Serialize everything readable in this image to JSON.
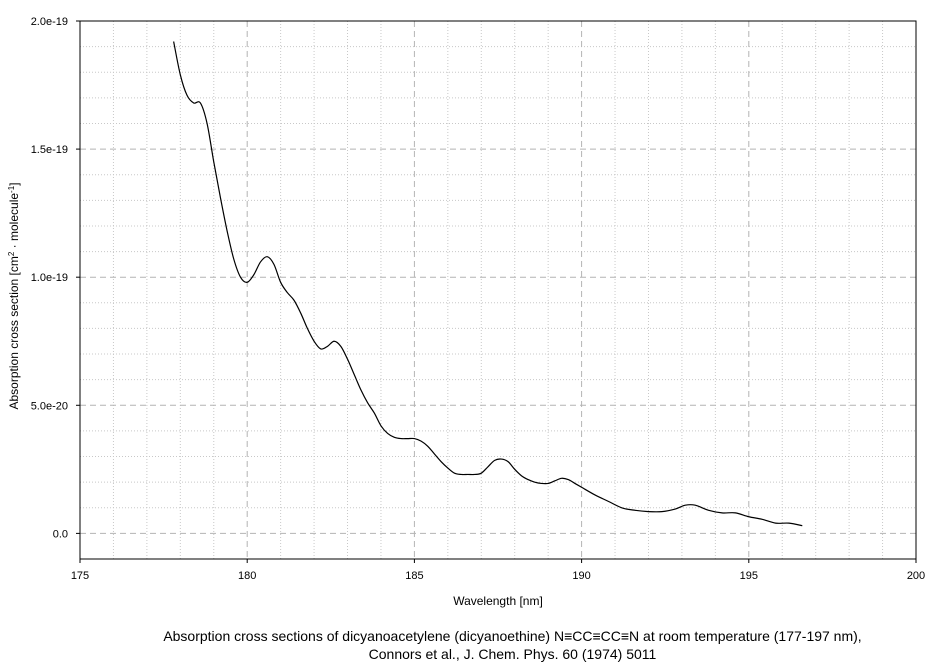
{
  "chart_data": {
    "type": "line",
    "xlabel": "Wavelength [nm]",
    "ylabel_parts": {
      "base": "Absorption cross section [cm",
      "sup1": "2",
      "mid": " · molecule",
      "sup2": "-1",
      "end": "]"
    },
    "xlim": [
      175,
      200
    ],
    "ylim": [
      -1e-20,
      2e-19
    ],
    "x_ticks": [
      175,
      180,
      185,
      190,
      195,
      200
    ],
    "x_tick_labels": [
      "175",
      "180",
      "185",
      "190",
      "195",
      "200"
    ],
    "y_ticks": [
      0,
      5e-20,
      1e-19,
      1.5e-19,
      2e-19
    ],
    "y_tick_labels": [
      "0.0",
      "5.0e-20",
      "1.0e-19",
      "1.5e-19",
      "2.0e-19"
    ],
    "grid": true,
    "series": [
      {
        "color": "#000000",
        "x": [
          177.8,
          178.0,
          178.2,
          178.4,
          178.6,
          178.8,
          179.0,
          179.2,
          179.4,
          179.6,
          179.8,
          180.0,
          180.2,
          180.4,
          180.6,
          180.8,
          181.0,
          181.2,
          181.4,
          181.6,
          181.8,
          182.0,
          182.2,
          182.4,
          182.6,
          182.8,
          183.0,
          183.2,
          183.4,
          183.6,
          183.8,
          184.0,
          184.2,
          184.4,
          184.6,
          184.8,
          185.0,
          185.2,
          185.4,
          185.6,
          185.8,
          186.0,
          186.2,
          186.4,
          186.6,
          186.8,
          187.0,
          187.2,
          187.4,
          187.6,
          187.8,
          188.0,
          188.2,
          188.4,
          188.6,
          188.8,
          189.0,
          189.2,
          189.4,
          189.6,
          189.8,
          190.0,
          190.4,
          190.8,
          191.2,
          191.6,
          192.0,
          192.4,
          192.8,
          193.1,
          193.4,
          193.8,
          194.2,
          194.6,
          195.0,
          195.4,
          195.8,
          196.2,
          196.6
        ],
        "y": [
          1.92e-19,
          1.79e-19,
          1.71e-19,
          1.68e-19,
          1.68e-19,
          1.6e-19,
          1.45e-19,
          1.31e-19,
          1.18e-19,
          1.07e-19,
          1e-19,
          9.8e-20,
          1.01e-19,
          1.06e-19,
          1.08e-19,
          1.05e-19,
          9.8e-20,
          9.4e-20,
          9.1e-20,
          8.6e-20,
          8e-20,
          7.5e-20,
          7.2e-20,
          7.3e-20,
          7.5e-20,
          7.3e-20,
          6.8e-20,
          6.2e-20,
          5.6e-20,
          5.1e-20,
          4.7e-20,
          4.2e-20,
          3.9e-20,
          3.75e-20,
          3.7e-20,
          3.7e-20,
          3.7e-20,
          3.6e-20,
          3.4e-20,
          3.1e-20,
          2.8e-20,
          2.55e-20,
          2.35e-20,
          2.3e-20,
          2.3e-20,
          2.3e-20,
          2.35e-20,
          2.6e-20,
          2.85e-20,
          2.9e-20,
          2.8e-20,
          2.5e-20,
          2.25e-20,
          2.1e-20,
          2e-20,
          1.95e-20,
          1.95e-20,
          2.05e-20,
          2.15e-20,
          2.1e-20,
          1.95e-20,
          1.8e-20,
          1.5e-20,
          1.25e-20,
          1e-20,
          9e-21,
          8.5e-21,
          8.5e-21,
          9.5e-21,
          1.1e-20,
          1.1e-20,
          9e-21,
          8e-21,
          8e-21,
          6.5e-21,
          5.5e-21,
          4e-21,
          4e-21,
          3e-21
        ]
      }
    ]
  },
  "caption": {
    "line1": "Absorption cross sections of dicyanoacetylene (dicyanoethine) N≡CC≡CC≡N at room temperature (177-197 nm),",
    "line2": "Connors et al.,  J. Chem. Phys. 60 (1974) 5011"
  }
}
